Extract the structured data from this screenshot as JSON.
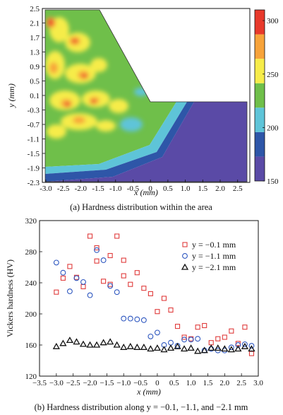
{
  "chart_data": [
    {
      "type": "heatmap",
      "xlabel": "x (mm)",
      "ylabel": "y (mm)",
      "xlim": [
        -3.1,
        2.85
      ],
      "ylim": [
        -2.3,
        2.5
      ],
      "xticks": [
        "-3.0",
        "-2.5",
        "-2.0",
        "-1.5",
        "-1.0",
        "-0.5",
        "0",
        "0.5",
        "1.0",
        "1.5",
        "2.0",
        "2.5"
      ],
      "yticks": [
        "2.5",
        "2.1",
        "1.7",
        "1.3",
        "0.9",
        "0.5",
        "0.1",
        "-0.3",
        "-0.7",
        "-1.1",
        "-1.5",
        "-1.9",
        "-2.3"
      ],
      "colorbar_ticks": [
        "300",
        "250",
        "200",
        "150"
      ],
      "colorbar_range": [
        150,
        310
      ],
      "colors": [
        "#5a4aa6",
        "#2e56a8",
        "#5ec4d8",
        "#6fbf4a",
        "#f6ec4a",
        "#f7a33a",
        "#e8392b"
      ],
      "caption": "(a) Hardness distribution within the area"
    },
    {
      "type": "scatter",
      "xlabel": "x (mm)",
      "ylabel": "Vickers hardness (HV)",
      "xlim": [
        -3.5,
        3.0
      ],
      "ylim": [
        120,
        320
      ],
      "xticks": [
        "−3.5",
        "−3.0",
        "−2.5",
        "−2.0",
        "−1.5",
        "−1.0",
        "−0.5",
        "0",
        "0.5",
        "1.0",
        "1.5",
        "2.0",
        "2.5",
        "3.0"
      ],
      "yticks": [
        "120",
        "160",
        "200",
        "240",
        "280",
        "320"
      ],
      "series": [
        {
          "name": "y = −0.1 mm",
          "marker": "square",
          "color": "#e03c3c",
          "x": [
            -3.0,
            -2.8,
            -2.6,
            -2.4,
            -2.2,
            -2.0,
            -1.8,
            -1.8,
            -1.6,
            -1.4,
            -1.4,
            -1.2,
            -1.0,
            -1.0,
            -0.8,
            -0.6,
            -0.4,
            -0.2,
            0.0,
            0.2,
            0.4,
            0.6,
            0.8,
            1.0,
            1.2,
            1.4,
            1.6,
            1.8,
            2.0,
            2.2,
            2.4,
            2.6,
            2.8
          ],
          "y": [
            228,
            246,
            261,
            247,
            235,
            300,
            268,
            285,
            242,
            275,
            238,
            300,
            249,
            269,
            238,
            253,
            233,
            226,
            203,
            220,
            205,
            184,
            170,
            168,
            183,
            185,
            163,
            168,
            170,
            178,
            162,
            183,
            149
          ]
        },
        {
          "name": "y = −1.1 mm",
          "marker": "circle",
          "color": "#2f58c0",
          "x": [
            -3.0,
            -2.8,
            -2.6,
            -2.4,
            -2.2,
            -2.0,
            -1.8,
            -1.6,
            -1.4,
            -1.2,
            -1.0,
            -0.8,
            -0.6,
            -0.4,
            -0.2,
            0.0,
            0.2,
            0.4,
            0.6,
            0.8,
            1.0,
            1.2,
            1.4,
            1.6,
            1.8,
            2.0,
            2.2,
            2.4,
            2.6,
            2.8
          ],
          "y": [
            266,
            253,
            229,
            246,
            241,
            224,
            282,
            269,
            236,
            228,
            194,
            194,
            193,
            192,
            171,
            176,
            160,
            163,
            159,
            167,
            167,
            168,
            153,
            155,
            153,
            153,
            157,
            160,
            161,
            159
          ]
        },
        {
          "name": "y = −2.1 mm",
          "marker": "triangle",
          "color": "#111111",
          "x": [
            -3.0,
            -2.8,
            -2.6,
            -2.4,
            -2.2,
            -2.0,
            -1.8,
            -1.6,
            -1.4,
            -1.2,
            -1.0,
            -0.8,
            -0.6,
            -0.4,
            -0.2,
            0.0,
            0.2,
            0.4,
            0.6,
            0.8,
            1.0,
            1.2,
            1.4,
            1.6,
            1.8,
            2.0,
            2.2,
            2.4,
            2.6,
            2.8
          ],
          "y": [
            158,
            162,
            166,
            164,
            161,
            160,
            160,
            163,
            164,
            160,
            157,
            158,
            157,
            157,
            155,
            156,
            154,
            156,
            158,
            155,
            156,
            152,
            153,
            156,
            156,
            155,
            154,
            155,
            158,
            155
          ]
        }
      ],
      "caption": "(b) Hardness distribution along y = −0.1, −1.1, and −2.1 mm"
    }
  ]
}
